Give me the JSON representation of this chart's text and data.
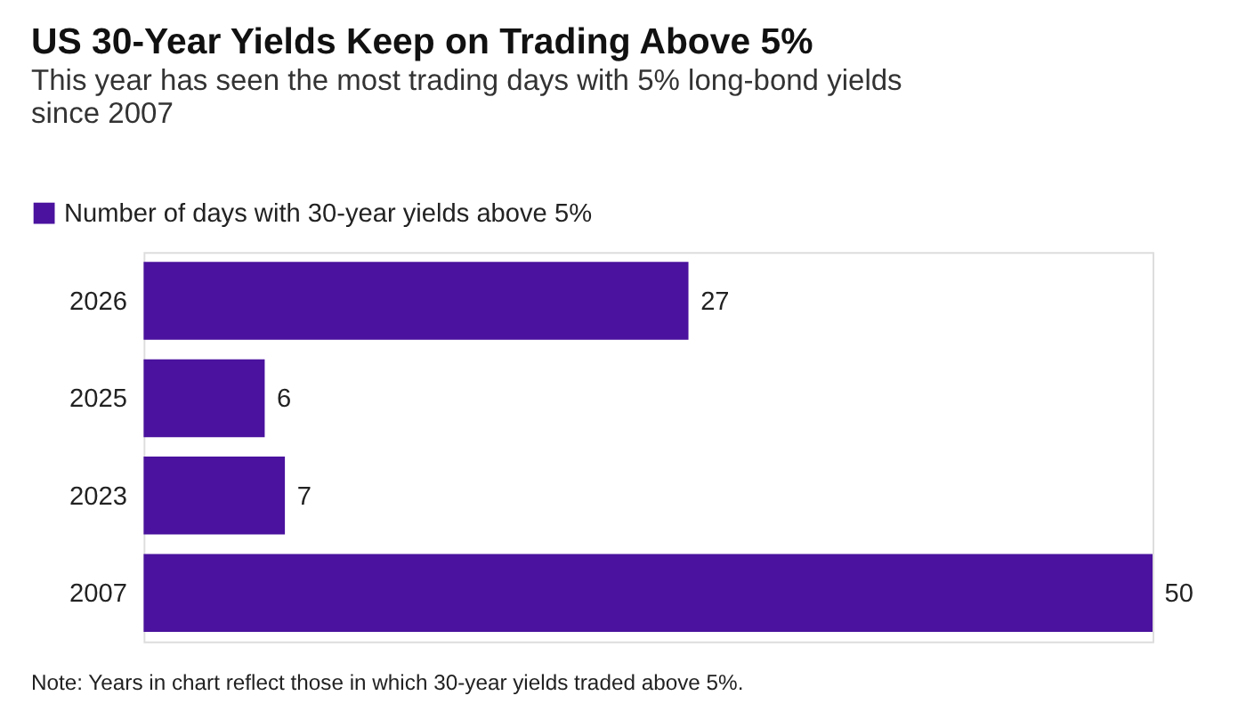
{
  "chart_data": {
    "type": "bar",
    "orientation": "horizontal",
    "title": "US 30-Year Yields Keep on Trading Above 5%",
    "subtitle": "This year has seen the most trading days with 5% long-bond yields since 2007",
    "categories": [
      "2026",
      "2025",
      "2023",
      "2007"
    ],
    "series": [
      {
        "name": "Number of days with 30-year yields above 5%",
        "color": "#4a129e",
        "values": [
          27,
          6,
          7,
          50
        ]
      }
    ],
    "data_labels": true,
    "legend": "top left",
    "grid": false,
    "annotations": [
      "Note: Years in chart reflect those in which 30-year yields traded above 5%."
    ]
  }
}
